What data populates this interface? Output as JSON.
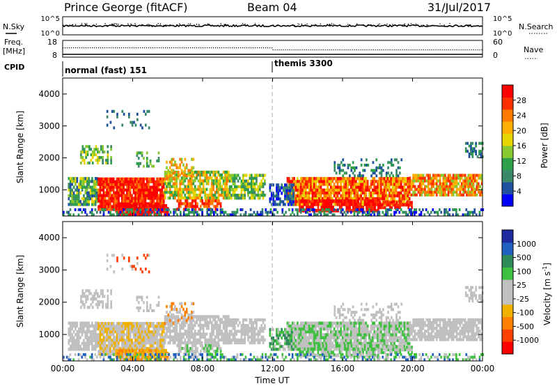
{
  "header": {
    "station": "Prince George (fitACF)",
    "beam": "Beam 04",
    "date": "31/Jul/2017"
  },
  "top_panels": {
    "nsky_label": "N.Sky",
    "nsky_ticks": [
      "10^5",
      "10^0"
    ],
    "nsearch_label": "N.Search",
    "nsearch_ticks": [
      "10^5",
      "10^0"
    ],
    "freq_label": "Freq.",
    "freq_unit": "[MHz]",
    "freq_ticks": [
      "18",
      "8"
    ],
    "nave_label": "Nave",
    "nave_ticks": [
      "60",
      "0"
    ],
    "cpid_label": "CPID",
    "cpid_segments": [
      {
        "label": "normal (fast) 151",
        "start_hour": 0
      },
      {
        "label": "themis 3300",
        "start_hour": 12
      }
    ]
  },
  "chart_data": [
    {
      "type": "heatmap",
      "panel": "power",
      "ylabel": "Slant Range [km]",
      "x_ticks": [
        "00:00",
        "04:00",
        "08:00",
        "12:00",
        "16:00",
        "20:00",
        "00:00"
      ],
      "y_ticks": [
        "1000",
        "2000",
        "3000",
        "4000"
      ],
      "xlim_hours": [
        0,
        24
      ],
      "ylim_km": [
        180,
        4500
      ],
      "colorbar_label": "Power [dB]",
      "colorbar_ticks": [
        "28",
        "24",
        "20",
        "16",
        "12",
        "8",
        "4"
      ],
      "colorbar_colors": [
        "#ff0000",
        "#ff3000",
        "#ff7a00",
        "#ffb000",
        "#e8d400",
        "#88c830",
        "#2fa04a",
        "#3a8a6a",
        "#2050a0",
        "#0000ff"
      ]
    },
    {
      "type": "heatmap",
      "panel": "velocity",
      "ylabel": "Slant Range [km]",
      "xlabel": "Time UT",
      "x_ticks": [
        "00:00",
        "04:00",
        "08:00",
        "12:00",
        "16:00",
        "20:00",
        "00:00"
      ],
      "y_ticks": [
        "1000",
        "2000",
        "3000",
        "4000"
      ],
      "xlim_hours": [
        0,
        24
      ],
      "ylim_km": [
        180,
        4500
      ],
      "colorbar_label": "Velocity [m s",
      "colorbar_label_sup": "-1",
      "colorbar_label_end": "]",
      "colorbar_ticks": [
        "1000",
        "500",
        "100",
        "25",
        "-25",
        "-100",
        "-500",
        "-1000"
      ],
      "colorbar_colors": [
        "#1e2aa0",
        "#2060c0",
        "#2f8a5a",
        "#40c040",
        "#c0c0c0",
        "#c0c0c0",
        "#f0b000",
        "#ff8000",
        "#ff4000",
        "#ff0000"
      ]
    }
  ]
}
